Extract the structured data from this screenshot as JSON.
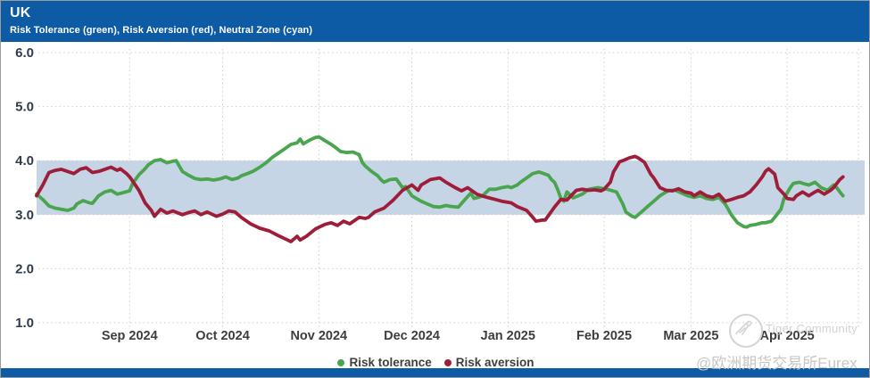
{
  "header": {
    "title": "UK",
    "subtitle": "Risk Tolerance (green), Risk Aversion (red), Neutral Zone (cyan)"
  },
  "legend": {
    "items": [
      {
        "label": "Risk tolerance",
        "color": "#4aa54e"
      },
      {
        "label": "Risk aversion",
        "color": "#9e1e3a"
      }
    ]
  },
  "watermark": {
    "community": "Tiger Community",
    "handle": "@欧洲期货交易所Eurex"
  },
  "colors": {
    "header_bar": "#0d5aa5",
    "neutral_zone": "#c6d5e6",
    "risk_tolerance": "#4aa54e",
    "risk_aversion": "#9e1e3a",
    "gridline": "#cdcdcd",
    "y_label": "#2f3b4d",
    "x_label": "#3d3d3d"
  },
  "chart_data": {
    "type": "line",
    "title": "UK",
    "subtitle": "Risk Tolerance (green), Risk Aversion (red), Neutral Zone (cyan)",
    "x_unit": "days_since_2024-08-02",
    "x_domain": [
      0,
      267
    ],
    "ylim": [
      1.0,
      6.0
    ],
    "y_ticks": [
      1,
      2,
      3,
      4,
      5,
      6
    ],
    "y_tick_labels": [
      "1.0",
      "2.0",
      "3.0",
      "4.0",
      "5.0",
      "6.0"
    ],
    "x_ticks": [
      {
        "label": "Sep 2024",
        "day": 30
      },
      {
        "label": "Oct 2024",
        "day": 60
      },
      {
        "label": "Nov 2024",
        "day": 91
      },
      {
        "label": "Dec 2024",
        "day": 121
      },
      {
        "label": "Jan 2025",
        "day": 152
      },
      {
        "label": "Feb 2025",
        "day": 183
      },
      {
        "label": "Mar 2025",
        "day": 211
      },
      {
        "label": "Apr 2025",
        "day": 242
      },
      {
        "label": "",
        "day": 265
      }
    ],
    "neutral_zone": {
      "from": 3.0,
      "to": 4.0,
      "color": "#c6d5e6"
    },
    "grid": true,
    "legend_position": "bottom",
    "series": [
      {
        "name": "Risk tolerance",
        "color": "#4aa54e",
        "points": [
          [
            0,
            3.38
          ],
          [
            2,
            3.28
          ],
          [
            4,
            3.16
          ],
          [
            6,
            3.12
          ],
          [
            8,
            3.1
          ],
          [
            10,
            3.08
          ],
          [
            12,
            3.12
          ],
          [
            13,
            3.2
          ],
          [
            15,
            3.26
          ],
          [
            17,
            3.22
          ],
          [
            18,
            3.21
          ],
          [
            20,
            3.35
          ],
          [
            22,
            3.42
          ],
          [
            24,
            3.45
          ],
          [
            26,
            3.38
          ],
          [
            28,
            3.41
          ],
          [
            30,
            3.44
          ],
          [
            31,
            3.58
          ],
          [
            33,
            3.74
          ],
          [
            35,
            3.85
          ],
          [
            36,
            3.92
          ],
          [
            38,
            4.0
          ],
          [
            40,
            4.02
          ],
          [
            42,
            3.96
          ],
          [
            44,
            3.99
          ],
          [
            45,
            4.0
          ],
          [
            47,
            3.8
          ],
          [
            49,
            3.73
          ],
          [
            51,
            3.67
          ],
          [
            53,
            3.65
          ],
          [
            55,
            3.66
          ],
          [
            57,
            3.64
          ],
          [
            59,
            3.66
          ],
          [
            61,
            3.7
          ],
          [
            63,
            3.65
          ],
          [
            65,
            3.68
          ],
          [
            66,
            3.72
          ],
          [
            68,
            3.76
          ],
          [
            70,
            3.81
          ],
          [
            72,
            3.88
          ],
          [
            74,
            3.96
          ],
          [
            76,
            4.06
          ],
          [
            78,
            4.14
          ],
          [
            80,
            4.22
          ],
          [
            82,
            4.3
          ],
          [
            84,
            4.33
          ],
          [
            85,
            4.4
          ],
          [
            86,
            4.31
          ],
          [
            88,
            4.38
          ],
          [
            90,
            4.43
          ],
          [
            91,
            4.44
          ],
          [
            93,
            4.37
          ],
          [
            95,
            4.3
          ],
          [
            96,
            4.26
          ],
          [
            98,
            4.17
          ],
          [
            100,
            4.15
          ],
          [
            102,
            4.16
          ],
          [
            104,
            4.11
          ],
          [
            105,
            3.97
          ],
          [
            106,
            3.9
          ],
          [
            108,
            3.8
          ],
          [
            110,
            3.72
          ],
          [
            111,
            3.65
          ],
          [
            112,
            3.6
          ],
          [
            114,
            3.65
          ],
          [
            116,
            3.66
          ],
          [
            118,
            3.5
          ],
          [
            119,
            3.52
          ],
          [
            121,
            3.35
          ],
          [
            123,
            3.28
          ],
          [
            124,
            3.25
          ],
          [
            126,
            3.2
          ],
          [
            128,
            3.15
          ],
          [
            130,
            3.14
          ],
          [
            132,
            3.17
          ],
          [
            134,
            3.15
          ],
          [
            136,
            3.14
          ],
          [
            138,
            3.27
          ],
          [
            140,
            3.4
          ],
          [
            141,
            3.3
          ],
          [
            143,
            3.33
          ],
          [
            144,
            3.36
          ],
          [
            146,
            3.47
          ],
          [
            148,
            3.47
          ],
          [
            150,
            3.5
          ],
          [
            152,
            3.52
          ],
          [
            153,
            3.5
          ],
          [
            155,
            3.55
          ],
          [
            156,
            3.6
          ],
          [
            158,
            3.68
          ],
          [
            160,
            3.76
          ],
          [
            162,
            3.79
          ],
          [
            163,
            3.77
          ],
          [
            165,
            3.73
          ],
          [
            166,
            3.65
          ],
          [
            167,
            3.6
          ],
          [
            168,
            3.47
          ],
          [
            169,
            3.31
          ],
          [
            170,
            3.25
          ],
          [
            171,
            3.42
          ],
          [
            173,
            3.31
          ],
          [
            176,
            3.38
          ],
          [
            178,
            3.47
          ],
          [
            181,
            3.5
          ],
          [
            184,
            3.47
          ],
          [
            187,
            3.42
          ],
          [
            189,
            3.2
          ],
          [
            190,
            3.05
          ],
          [
            192,
            2.97
          ],
          [
            193,
            2.95
          ],
          [
            195,
            3.05
          ],
          [
            197,
            3.15
          ],
          [
            199,
            3.25
          ],
          [
            201,
            3.35
          ],
          [
            203,
            3.42
          ],
          [
            204,
            3.45
          ],
          [
            206,
            3.45
          ],
          [
            208,
            3.4
          ],
          [
            210,
            3.35
          ],
          [
            212,
            3.32
          ],
          [
            214,
            3.35
          ],
          [
            216,
            3.3
          ],
          [
            218,
            3.28
          ],
          [
            220,
            3.32
          ],
          [
            222,
            3.2
          ],
          [
            223,
            3.1
          ],
          [
            224,
            3.0
          ],
          [
            226,
            2.85
          ],
          [
            228,
            2.78
          ],
          [
            229,
            2.77
          ],
          [
            230,
            2.8
          ],
          [
            232,
            2.82
          ],
          [
            234,
            2.85
          ],
          [
            235,
            2.85
          ],
          [
            237,
            2.88
          ],
          [
            238,
            2.95
          ],
          [
            240,
            3.1
          ],
          [
            241,
            3.3
          ],
          [
            243,
            3.5
          ],
          [
            244,
            3.58
          ],
          [
            246,
            3.6
          ],
          [
            247,
            3.58
          ],
          [
            249,
            3.55
          ],
          [
            251,
            3.6
          ],
          [
            252,
            3.55
          ],
          [
            253,
            3.5
          ],
          [
            255,
            3.45
          ],
          [
            257,
            3.55
          ],
          [
            258,
            3.5
          ],
          [
            259,
            3.42
          ],
          [
            260,
            3.35
          ]
        ]
      },
      {
        "name": "Risk aversion",
        "color": "#9e1e3a",
        "points": [
          [
            0,
            3.35
          ],
          [
            2,
            3.55
          ],
          [
            4,
            3.78
          ],
          [
            6,
            3.82
          ],
          [
            8,
            3.84
          ],
          [
            10,
            3.8
          ],
          [
            12,
            3.76
          ],
          [
            14,
            3.84
          ],
          [
            16,
            3.87
          ],
          [
            18,
            3.78
          ],
          [
            20,
            3.8
          ],
          [
            22,
            3.84
          ],
          [
            24,
            3.88
          ],
          [
            26,
            3.82
          ],
          [
            27,
            3.85
          ],
          [
            29,
            3.76
          ],
          [
            30,
            3.7
          ],
          [
            31,
            3.62
          ],
          [
            33,
            3.45
          ],
          [
            35,
            3.22
          ],
          [
            37,
            3.08
          ],
          [
            38,
            2.97
          ],
          [
            40,
            3.1
          ],
          [
            42,
            3.03
          ],
          [
            44,
            3.07
          ],
          [
            47,
            3.0
          ],
          [
            49,
            3.04
          ],
          [
            51,
            3.07
          ],
          [
            53,
            3.0
          ],
          [
            55,
            3.05
          ],
          [
            58,
            2.97
          ],
          [
            60,
            3.01
          ],
          [
            62,
            3.07
          ],
          [
            64,
            3.05
          ],
          [
            66,
            2.95
          ],
          [
            69,
            2.83
          ],
          [
            72,
            2.75
          ],
          [
            75,
            2.7
          ],
          [
            78,
            2.61
          ],
          [
            81,
            2.53
          ],
          [
            82,
            2.5
          ],
          [
            84,
            2.6
          ],
          [
            85,
            2.53
          ],
          [
            87,
            2.6
          ],
          [
            90,
            2.74
          ],
          [
            93,
            2.82
          ],
          [
            95,
            2.85
          ],
          [
            97,
            2.8
          ],
          [
            99,
            2.88
          ],
          [
            101,
            2.83
          ],
          [
            104,
            2.95
          ],
          [
            106,
            2.93
          ],
          [
            107,
            2.95
          ],
          [
            109,
            3.05
          ],
          [
            112,
            3.12
          ],
          [
            115,
            3.27
          ],
          [
            118,
            3.45
          ],
          [
            121,
            3.55
          ],
          [
            123,
            3.45
          ],
          [
            124,
            3.55
          ],
          [
            127,
            3.65
          ],
          [
            130,
            3.68
          ],
          [
            132,
            3.6
          ],
          [
            135,
            3.5
          ],
          [
            137,
            3.44
          ],
          [
            139,
            3.5
          ],
          [
            142,
            3.38
          ],
          [
            144,
            3.34
          ],
          [
            146,
            3.31
          ],
          [
            148,
            3.28
          ],
          [
            150,
            3.25
          ],
          [
            153,
            3.22
          ],
          [
            155,
            3.15
          ],
          [
            158,
            3.08
          ],
          [
            160,
            2.95
          ],
          [
            161,
            2.88
          ],
          [
            163,
            2.9
          ],
          [
            164,
            2.9
          ],
          [
            167,
            3.14
          ],
          [
            169,
            3.28
          ],
          [
            171,
            3.27
          ],
          [
            174,
            3.45
          ],
          [
            176,
            3.47
          ],
          [
            178,
            3.45
          ],
          [
            180,
            3.46
          ],
          [
            182,
            3.44
          ],
          [
            183,
            3.47
          ],
          [
            185,
            3.6
          ],
          [
            186,
            3.79
          ],
          [
            188,
            3.98
          ],
          [
            189,
            4.0
          ],
          [
            191,
            4.05
          ],
          [
            193,
            4.08
          ],
          [
            194,
            4.05
          ],
          [
            196,
            3.97
          ],
          [
            198,
            3.75
          ],
          [
            199,
            3.68
          ],
          [
            201,
            3.5
          ],
          [
            203,
            3.45
          ],
          [
            205,
            3.44
          ],
          [
            207,
            3.48
          ],
          [
            209,
            3.42
          ],
          [
            211,
            3.4
          ],
          [
            212,
            3.35
          ],
          [
            214,
            3.42
          ],
          [
            216,
            3.35
          ],
          [
            218,
            3.32
          ],
          [
            220,
            3.38
          ],
          [
            222,
            3.25
          ],
          [
            224,
            3.28
          ],
          [
            226,
            3.32
          ],
          [
            228,
            3.35
          ],
          [
            230,
            3.42
          ],
          [
            232,
            3.55
          ],
          [
            234,
            3.7
          ],
          [
            235,
            3.8
          ],
          [
            236,
            3.85
          ],
          [
            238,
            3.75
          ],
          [
            239,
            3.5
          ],
          [
            241,
            3.38
          ],
          [
            242,
            3.3
          ],
          [
            244,
            3.28
          ],
          [
            245,
            3.35
          ],
          [
            247,
            3.42
          ],
          [
            249,
            3.35
          ],
          [
            251,
            3.42
          ],
          [
            252,
            3.45
          ],
          [
            254,
            3.38
          ],
          [
            256,
            3.45
          ],
          [
            257,
            3.5
          ],
          [
            259,
            3.65
          ],
          [
            260,
            3.7
          ]
        ]
      }
    ]
  }
}
